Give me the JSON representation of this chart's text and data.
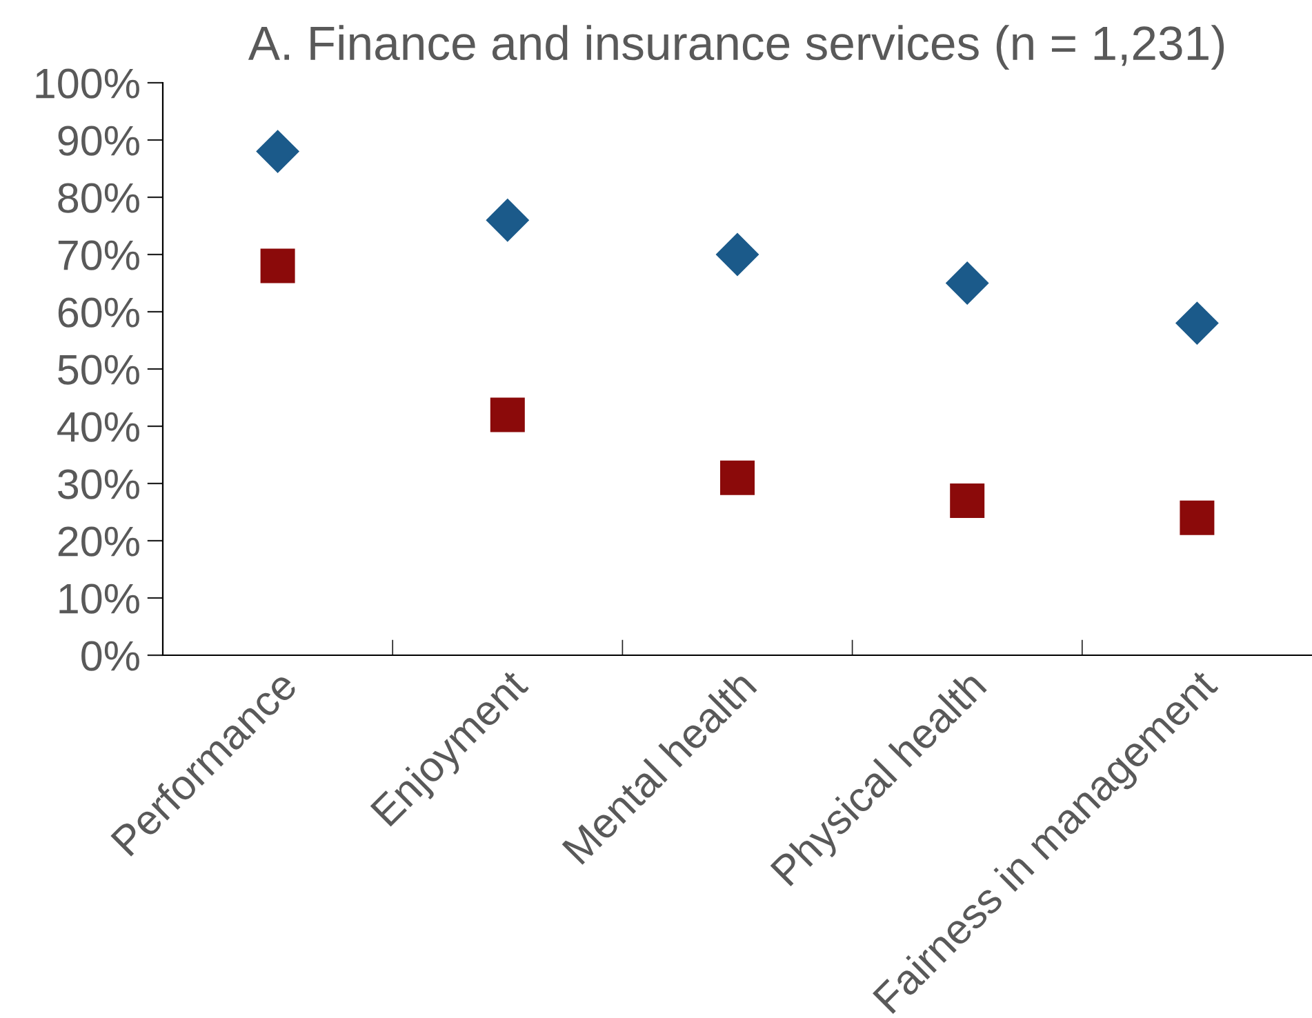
{
  "chart_data": {
    "type": "scatter",
    "title": "A. Finance and insurance services (n = 1,231)",
    "categories": [
      "Performance",
      "Enjoyment",
      "Mental health",
      "Physical health",
      "Fairness in management"
    ],
    "series": [
      {
        "color": "#1b5a8a",
        "marker": "diamond",
        "values": [
          88,
          76,
          70,
          65,
          58
        ]
      },
      {
        "color": "#8b0a0a",
        "marker": "square",
        "values": [
          68,
          42,
          31,
          27,
          24
        ]
      }
    ],
    "ylim": [
      0,
      100
    ],
    "yticks": [
      {
        "value": 0,
        "label": "0%"
      },
      {
        "value": 10,
        "label": "10%"
      },
      {
        "value": 20,
        "label": "20%"
      },
      {
        "value": 30,
        "label": "30%"
      },
      {
        "value": 40,
        "label": "40%"
      },
      {
        "value": 50,
        "label": "50%"
      },
      {
        "value": 60,
        "label": "60%"
      },
      {
        "value": 70,
        "label": "70%"
      },
      {
        "value": 80,
        "label": "80%"
      },
      {
        "value": 90,
        "label": "90%"
      },
      {
        "value": 100,
        "label": "100%"
      }
    ],
    "grid": false,
    "legend": false
  }
}
